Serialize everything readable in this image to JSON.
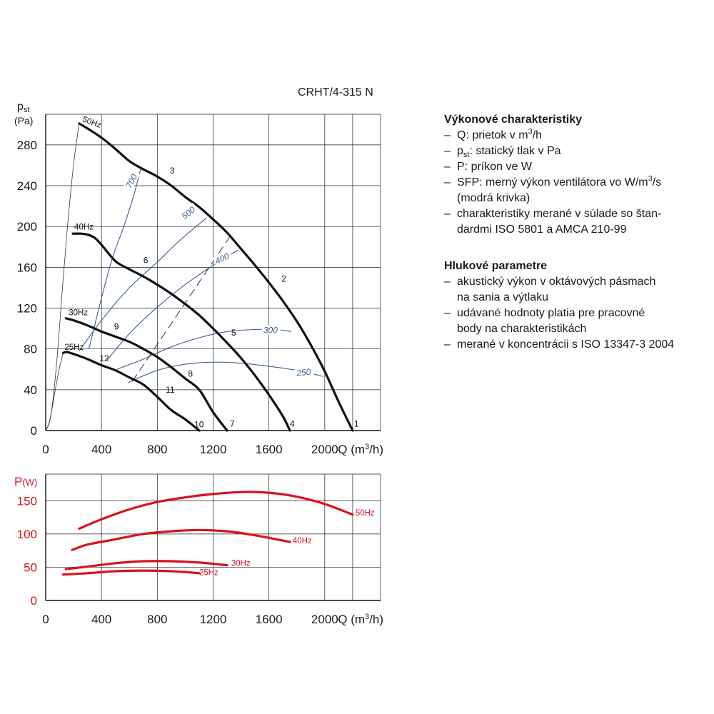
{
  "model": "CRHT/4-315 N",
  "chart_data": [
    {
      "type": "line",
      "id": "pressure",
      "ylabel": "pst",
      "ylabel_main": "p",
      "ylabel_sub": "st",
      "yunit": "(Pa)",
      "xlabel": "Q (m³/h)",
      "xlabel_main": "Q (m",
      "xlabel_sup": "3",
      "xlabel_end": "/h)",
      "xlim": [
        0,
        2400
      ],
      "ylim": [
        0,
        310
      ],
      "xticks": [
        0,
        400,
        800,
        1200,
        1600,
        2000
      ],
      "yticks": [
        0,
        40,
        80,
        120,
        160,
        200,
        240,
        280
      ],
      "grid": true,
      "series": [
        {
          "name": "50Hz",
          "color": "#111111",
          "x": [
            240,
            300,
            400,
            500,
            600,
            700,
            800,
            900,
            1000,
            1100,
            1200,
            1300,
            1400,
            1500,
            1600,
            1700,
            1800,
            1900,
            2000,
            2100,
            2200
          ],
          "y": [
            301,
            296,
            287,
            276,
            264,
            256,
            249,
            240,
            229,
            219,
            207,
            194,
            178,
            162,
            145,
            127,
            107,
            84,
            58,
            28,
            0
          ]
        },
        {
          "name": "40Hz",
          "color": "#111111",
          "x": [
            195,
            250,
            300,
            350,
            400,
            500,
            600,
            700,
            800,
            900,
            1000,
            1100,
            1200,
            1300,
            1400,
            1500,
            1600,
            1700,
            1750
          ],
          "y": [
            193,
            193,
            192,
            189,
            182,
            166,
            158,
            151,
            143,
            134,
            124,
            113,
            100,
            86,
            71,
            54,
            35,
            14,
            0
          ]
        },
        {
          "name": "30Hz",
          "color": "#111111",
          "x": [
            145,
            200,
            300,
            400,
            500,
            600,
            700,
            800,
            900,
            1000,
            1100,
            1200,
            1300
          ],
          "y": [
            110,
            108,
            103,
            97,
            92,
            87,
            80,
            72,
            62,
            51,
            40,
            18,
            0
          ]
        },
        {
          "name": "25Hz",
          "color": "#111111",
          "x": [
            125,
            150,
            200,
            300,
            400,
            500,
            600,
            700,
            800,
            900,
            1000,
            1100
          ],
          "y": [
            76,
            77,
            75,
            70,
            64,
            59,
            52,
            45,
            33,
            20,
            11,
            0
          ]
        }
      ],
      "system_curves": [
        {
          "label": "1",
          "x": [
            0,
            30,
            60,
            90,
            120,
            150,
            180,
            210,
            240
          ],
          "y": [
            0,
            10,
            40,
            85,
            140,
            190,
            235,
            272,
            301
          ]
        },
        {
          "label": "12",
          "x": [
            0,
            25,
            50,
            75,
            100,
            125
          ],
          "y": [
            0,
            8,
            25,
            45,
            62,
            76
          ]
        }
      ],
      "sfp_curves": [
        {
          "label": "700",
          "x": [
            310,
            400,
            480,
            560,
            630,
            680
          ],
          "y": [
            80,
            130,
            170,
            200,
            230,
            256
          ]
        },
        {
          "label": "500",
          "x": [
            240,
            400,
            600,
            800,
            950,
            1150
          ],
          "y": [
            78,
            108,
            140,
            165,
            185,
            208
          ]
        },
        {
          "label": "400",
          "x": [
            440,
            600,
            800,
            1000,
            1200,
            1380
          ],
          "y": [
            69,
            95,
            121,
            143,
            162,
            177
          ]
        },
        {
          "label": "300",
          "x": [
            510,
            700,
            900,
            1100,
            1300,
            1500,
            1650,
            1760
          ],
          "y": [
            60,
            70,
            82,
            91,
            97,
            99,
            99,
            97
          ]
        },
        {
          "label": "250",
          "x": [
            590,
            800,
            1000,
            1200,
            1400,
            1600,
            1800,
            1990
          ],
          "y": [
            47,
            59,
            65,
            67,
            66,
            63,
            59,
            53
          ]
        }
      ],
      "sfp_color": "#3a5f95",
      "dashed_line": {
        "x": [
          620,
          1320
        ],
        "y": [
          48,
          190
        ]
      },
      "point_labels": [
        {
          "text": "1",
          "x": 2210,
          "y": 4
        },
        {
          "text": "2",
          "x": 1690,
          "y": 146
        },
        {
          "text": "3",
          "x": 890,
          "y": 252
        },
        {
          "text": "4",
          "x": 1750,
          "y": 4
        },
        {
          "text": "5",
          "x": 1330,
          "y": 93
        },
        {
          "text": "6",
          "x": 700,
          "y": 164
        },
        {
          "text": "7",
          "x": 1320,
          "y": 4
        },
        {
          "text": "8",
          "x": 1020,
          "y": 53
        },
        {
          "text": "9",
          "x": 490,
          "y": 99
        },
        {
          "text": "10",
          "x": 1065,
          "y": 3
        },
        {
          "text": "11",
          "x": 860,
          "y": 37
        },
        {
          "text": "12",
          "x": 385,
          "y": 68
        }
      ],
      "hz_labels": [
        {
          "text": "50Hz",
          "x": 260,
          "y": 303
        },
        {
          "text": "40Hz",
          "x": 205,
          "y": 197
        },
        {
          "text": "30Hz",
          "x": 165,
          "y": 113
        },
        {
          "text": "25Hz",
          "x": 135,
          "y": 79
        }
      ]
    },
    {
      "type": "line",
      "id": "power",
      "ylabel": "P(W)",
      "ylabel_main": "P",
      "ylabel_unit": "(W)",
      "xlabel": "Q (m³/h)",
      "xlabel_main": "Q (m",
      "xlabel_sup": "3",
      "xlabel_end": "/h)",
      "xlim": [
        0,
        2400
      ],
      "ylim": [
        0,
        190
      ],
      "xticks": [
        0,
        400,
        800,
        1200,
        1600,
        2000
      ],
      "yticks": [
        0,
        50,
        100,
        150
      ],
      "grid": true,
      "series": [
        {
          "name": "50Hz",
          "color": "#d8121f",
          "x": [
            240,
            400,
            600,
            800,
            1000,
            1200,
            1400,
            1600,
            1800,
            2000,
            2200
          ],
          "y": [
            108,
            122,
            137,
            148,
            155,
            160,
            163,
            162,
            156,
            145,
            129
          ]
        },
        {
          "name": "40Hz",
          "color": "#d8121f",
          "x": [
            190,
            300,
            500,
            700,
            900,
            1100,
            1300,
            1500,
            1750
          ],
          "y": [
            76,
            84,
            92,
            100,
            104,
            106,
            104,
            98,
            88
          ]
        },
        {
          "name": "30Hz",
          "color": "#d8121f",
          "x": [
            145,
            300,
            500,
            700,
            900,
            1100,
            1300
          ],
          "y": [
            47,
            51,
            56,
            59,
            59,
            57,
            53
          ]
        },
        {
          "name": "25Hz",
          "color": "#d8121f",
          "x": [
            125,
            300,
            500,
            700,
            900,
            1100
          ],
          "y": [
            39,
            41,
            44,
            45,
            44,
            41
          ]
        }
      ],
      "hz_labels": [
        {
          "text": "50Hz",
          "x": 2220,
          "y": 128
        },
        {
          "text": "40Hz",
          "x": 1770,
          "y": 86
        },
        {
          "text": "30Hz",
          "x": 1330,
          "y": 52
        },
        {
          "text": "25Hz",
          "x": 1100,
          "y": 38
        }
      ]
    }
  ],
  "performance": {
    "title": "Výkonové charakteristiky",
    "items": [
      "Q: prietok v m³/h",
      "pst: statický tlak v Pa",
      "P: príkon ve W",
      "SFP: merný výkon ventilátora vo W/m³/s (modrá krivka)",
      "charakteristiky merané v súlade so štandardmi ISO 5801 a AMCA 210-99"
    ],
    "rich": [
      {
        "a": "Q: prietok v m",
        "sup": "3",
        "b": "/h"
      },
      {
        "a": "p",
        "sub": "st",
        "b": ": statický tlak v Pa"
      },
      {
        "a": "P: príkon ve W"
      },
      {
        "a": "SFP: merný výkon ventilátora vo W/m",
        "sup": "3",
        "b": "/s"
      },
      {
        "a": "(modrá krivka)"
      },
      {
        "a": "charakteristiky merané v súlade so štan-"
      },
      {
        "a": "dardmi ISO 5801 a AMCA 210-99"
      }
    ],
    "rich_bullets": [
      true,
      true,
      true,
      true,
      false,
      true,
      false
    ]
  },
  "noise": {
    "title": "Hlukové parametre",
    "lines": [
      "akustický výkon v oktávových pásmach",
      "na sania a výtlaku",
      "udávané hodnoty platia pre pracovné",
      "body na charakteristikách",
      "merané v koncentrácii s ISO 13347-3 2004"
    ],
    "bullets": [
      true,
      false,
      true,
      false,
      true
    ]
  }
}
